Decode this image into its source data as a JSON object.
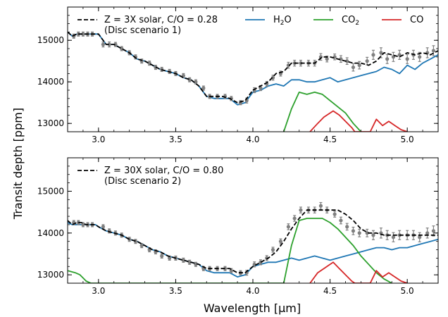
{
  "figure": {
    "ylabel": "Transit depth [ppm]",
    "xlabel": "Wavelength [μm]"
  },
  "colors": {
    "H2O": "#1f77b4",
    "CO2": "#2ca02c",
    "CO": "#d62728",
    "model": "#000000",
    "data": "#808080"
  },
  "chart_data": [
    {
      "type": "line",
      "legend_model": [
        "Z = 3X solar, C/O = 0.28",
        "(Disc scenario 1)"
      ],
      "legend_species": [
        {
          "key": "H2O",
          "label": "H",
          "sub": "2",
          "tail": "O"
        },
        {
          "key": "CO2",
          "label": "CO",
          "sub": "2",
          "tail": ""
        },
        {
          "key": "CO",
          "label": "CO",
          "sub": "",
          "tail": ""
        }
      ],
      "legend_placement": "top",
      "xlim": [
        2.8,
        5.2
      ],
      "ylim": [
        12800,
        15800
      ],
      "xticks": [
        3.0,
        3.5,
        4.0,
        4.5,
        5.0
      ],
      "xtick_labels": [
        "3.0",
        "3.5",
        "4.0",
        "4.5",
        "5.0"
      ],
      "yticks": [
        13000,
        14000,
        15000
      ],
      "ytick_labels": [
        "13000",
        "14000",
        "15000"
      ],
      "grid": false,
      "series": {
        "model": {
          "x": [
            2.8,
            2.83,
            2.86,
            2.89,
            2.92,
            2.95,
            2.98,
            3.0,
            3.05,
            3.1,
            3.15,
            3.2,
            3.25,
            3.3,
            3.35,
            3.4,
            3.45,
            3.5,
            3.55,
            3.6,
            3.65,
            3.7,
            3.75,
            3.8,
            3.85,
            3.9,
            3.95,
            4.0,
            4.05,
            4.1,
            4.15,
            4.2,
            4.25,
            4.3,
            4.35,
            4.4,
            4.45,
            4.5,
            4.55,
            4.6,
            4.65,
            4.7,
            4.75,
            4.8,
            4.85,
            4.9,
            4.95,
            5.0,
            5.05,
            5.1,
            5.15,
            5.2
          ],
          "y": [
            15200,
            15100,
            15150,
            15150,
            15150,
            15150,
            15150,
            15150,
            14900,
            14900,
            14800,
            14700,
            14550,
            14500,
            14400,
            14300,
            14250,
            14200,
            14100,
            14050,
            13900,
            13650,
            13650,
            13650,
            13600,
            13500,
            13550,
            13800,
            13900,
            14000,
            14200,
            14250,
            14450,
            14450,
            14450,
            14450,
            14600,
            14600,
            14550,
            14500,
            14450,
            14450,
            14400,
            14500,
            14700,
            14650,
            14600,
            14700,
            14650,
            14700,
            14650,
            14750
          ]
        },
        "H2O": {
          "x": [
            2.8,
            2.83,
            2.86,
            2.89,
            2.92,
            2.95,
            2.98,
            3.0,
            3.05,
            3.1,
            3.15,
            3.2,
            3.25,
            3.3,
            3.35,
            3.4,
            3.45,
            3.5,
            3.55,
            3.6,
            3.65,
            3.7,
            3.75,
            3.8,
            3.85,
            3.9,
            3.95,
            4.0,
            4.05,
            4.1,
            4.15,
            4.2,
            4.25,
            4.3,
            4.35,
            4.4,
            4.45,
            4.5,
            4.55,
            4.6,
            4.65,
            4.7,
            4.75,
            4.8,
            4.85,
            4.9,
            4.95,
            5.0,
            5.05,
            5.1,
            5.15,
            5.2
          ],
          "y": [
            15200,
            15100,
            15150,
            15150,
            15150,
            15150,
            15150,
            15150,
            14900,
            14900,
            14800,
            14700,
            14550,
            14500,
            14400,
            14300,
            14250,
            14200,
            14100,
            14050,
            13900,
            13650,
            13600,
            13600,
            13600,
            13450,
            13500,
            13750,
            13800,
            13900,
            13950,
            13900,
            14050,
            14050,
            14000,
            14000,
            14050,
            14100,
            14000,
            14050,
            14100,
            14150,
            14200,
            14250,
            14350,
            14300,
            14200,
            14400,
            14300,
            14450,
            14550,
            14650
          ]
        },
        "CO2": {
          "x": [
            4.2,
            4.25,
            4.3,
            4.35,
            4.4,
            4.45,
            4.5,
            4.55,
            4.6,
            4.65,
            4.7
          ],
          "y": [
            12800,
            13350,
            13750,
            13700,
            13750,
            13700,
            13550,
            13400,
            13250,
            13000,
            12800
          ]
        },
        "CO": {
          "x": [
            4.37,
            4.42,
            4.46,
            4.52,
            4.56,
            4.6,
            4.64,
            4.66,
            4.68,
            4.76,
            4.8,
            4.84,
            4.88,
            4.92,
            4.96,
            5.0
          ],
          "y": [
            12800,
            13000,
            13150,
            13300,
            13200,
            13050,
            12900,
            12800,
            12800,
            12800,
            13100,
            12950,
            13050,
            12950,
            12850,
            12800
          ]
        },
        "data": {
          "x": [
            2.84,
            2.87,
            2.9,
            2.93,
            2.96,
            3.03,
            3.07,
            3.11,
            3.15,
            3.2,
            3.24,
            3.28,
            3.33,
            3.37,
            3.41,
            3.46,
            3.5,
            3.55,
            3.59,
            3.63,
            3.68,
            3.72,
            3.77,
            3.82,
            3.86,
            3.92,
            3.96,
            4.01,
            4.05,
            4.09,
            4.13,
            4.18,
            4.23,
            4.27,
            4.31,
            4.36,
            4.4,
            4.44,
            4.48,
            4.53,
            4.57,
            4.61,
            4.65,
            4.69,
            4.74,
            4.78,
            4.83,
            4.87,
            4.91,
            4.95,
            5.0,
            5.04,
            5.08,
            5.13,
            5.17
          ],
          "y": [
            15100,
            15150,
            15150,
            15150,
            15150,
            14900,
            14900,
            14900,
            14800,
            14700,
            14600,
            14500,
            14450,
            14350,
            14300,
            14250,
            14200,
            14150,
            14050,
            14000,
            13850,
            13650,
            13650,
            13650,
            13600,
            13500,
            13550,
            13800,
            13850,
            13950,
            14100,
            14200,
            14400,
            14450,
            14450,
            14450,
            14450,
            14600,
            14550,
            14600,
            14550,
            14500,
            14350,
            14400,
            14500,
            14650,
            14700,
            14550,
            14600,
            14650,
            14550,
            14650,
            14600,
            14700,
            14750
          ],
          "err": [
            50,
            50,
            50,
            50,
            50,
            60,
            60,
            50,
            50,
            50,
            50,
            50,
            50,
            50,
            50,
            50,
            50,
            50,
            50,
            50,
            50,
            50,
            50,
            50,
            50,
            50,
            60,
            60,
            60,
            60,
            60,
            60,
            70,
            70,
            70,
            70,
            70,
            80,
            70,
            70,
            80,
            80,
            90,
            90,
            90,
            110,
            120,
            110,
            110,
            110,
            110,
            110,
            110,
            120,
            120
          ]
        }
      }
    },
    {
      "type": "line",
      "legend_model": [
        "Z = 30X solar, C/O = 0.80",
        "(Disc scenario 2)"
      ],
      "legend_placement": "top-left",
      "xlim": [
        2.8,
        5.2
      ],
      "ylim": [
        12800,
        15800
      ],
      "xticks": [
        3.0,
        3.5,
        4.0,
        4.5,
        5.0
      ],
      "xtick_labels": [
        "3.0",
        "3.5",
        "4.0",
        "4.5",
        "5.0"
      ],
      "yticks": [
        13000,
        14000,
        15000
      ],
      "ytick_labels": [
        "13000",
        "14000",
        "15000"
      ],
      "grid": false,
      "series": {
        "model": {
          "x": [
            2.8,
            2.83,
            2.86,
            2.89,
            2.92,
            2.95,
            2.98,
            3.0,
            3.05,
            3.1,
            3.15,
            3.2,
            3.25,
            3.3,
            3.35,
            3.4,
            3.45,
            3.5,
            3.55,
            3.6,
            3.65,
            3.7,
            3.75,
            3.8,
            3.85,
            3.9,
            3.95,
            4.0,
            4.05,
            4.1,
            4.15,
            4.2,
            4.25,
            4.3,
            4.35,
            4.4,
            4.45,
            4.5,
            4.55,
            4.6,
            4.65,
            4.7,
            4.75,
            4.8,
            4.85,
            4.9,
            4.95,
            5.0,
            5.05,
            5.1,
            5.15,
            5.2
          ],
          "y": [
            14300,
            14200,
            14250,
            14250,
            14200,
            14200,
            14200,
            14150,
            14050,
            14000,
            13950,
            13850,
            13800,
            13700,
            13600,
            13550,
            13450,
            13400,
            13350,
            13300,
            13250,
            13150,
            13150,
            13150,
            13150,
            13050,
            13050,
            13200,
            13300,
            13400,
            13550,
            13800,
            14100,
            14350,
            14550,
            14550,
            14550,
            14550,
            14550,
            14450,
            14300,
            14100,
            14000,
            14000,
            13950,
            13950,
            13950,
            13950,
            13950,
            13950,
            13950,
            13950
          ]
        },
        "H2O": {
          "x": [
            2.8,
            2.83,
            2.86,
            2.89,
            2.92,
            2.95,
            2.98,
            3.0,
            3.05,
            3.1,
            3.15,
            3.2,
            3.25,
            3.3,
            3.35,
            3.4,
            3.45,
            3.5,
            3.55,
            3.6,
            3.65,
            3.7,
            3.75,
            3.8,
            3.85,
            3.9,
            3.95,
            4.0,
            4.05,
            4.1,
            4.15,
            4.2,
            4.25,
            4.3,
            4.35,
            4.4,
            4.45,
            4.5,
            4.55,
            4.6,
            4.65,
            4.7,
            4.75,
            4.8,
            4.85,
            4.9,
            4.95,
            5.0,
            5.05,
            5.1,
            5.15,
            5.2
          ],
          "y": [
            14250,
            14200,
            14200,
            14200,
            14200,
            14200,
            14200,
            14150,
            14050,
            14000,
            13950,
            13850,
            13800,
            13700,
            13600,
            13550,
            13450,
            13400,
            13350,
            13300,
            13250,
            13100,
            13050,
            13050,
            13050,
            12950,
            13000,
            13200,
            13250,
            13300,
            13300,
            13350,
            13400,
            13350,
            13400,
            13450,
            13400,
            13350,
            13400,
            13450,
            13500,
            13550,
            13600,
            13650,
            13650,
            13600,
            13650,
            13650,
            13700,
            13750,
            13800,
            13850
          ]
        },
        "CO2": {
          "x": [
            2.8,
            2.85,
            2.88,
            2.92,
            2.95,
            4.2,
            4.25,
            4.3,
            4.35,
            4.4,
            4.45,
            4.5,
            4.55,
            4.6,
            4.65,
            4.7,
            4.75,
            4.8,
            4.85,
            4.9
          ],
          "y": [
            13100,
            13050,
            13000,
            12850,
            12800,
            12800,
            13700,
            14300,
            14350,
            14350,
            14350,
            14250,
            14100,
            13900,
            13700,
            13450,
            13250,
            13050,
            12900,
            12800
          ]
        },
        "CO": {
          "x": [
            4.37,
            4.42,
            4.46,
            4.52,
            4.56,
            4.6,
            4.64,
            4.66,
            4.68,
            4.76,
            4.8,
            4.84,
            4.88,
            4.92,
            4.96,
            5.0
          ],
          "y": [
            12800,
            13050,
            13150,
            13300,
            13150,
            13000,
            12850,
            12800,
            12800,
            12800,
            13100,
            12950,
            13050,
            12950,
            12850,
            12800
          ]
        },
        "data": {
          "x": [
            2.84,
            2.87,
            2.9,
            2.93,
            2.96,
            3.03,
            3.07,
            3.11,
            3.15,
            3.2,
            3.24,
            3.28,
            3.33,
            3.37,
            3.41,
            3.46,
            3.5,
            3.55,
            3.59,
            3.63,
            3.68,
            3.72,
            3.77,
            3.82,
            3.86,
            3.92,
            3.96,
            4.01,
            4.05,
            4.09,
            4.13,
            4.18,
            4.23,
            4.27,
            4.31,
            4.36,
            4.4,
            4.44,
            4.48,
            4.53,
            4.57,
            4.61,
            4.65,
            4.69,
            4.74,
            4.78,
            4.83,
            4.87,
            4.91,
            4.95,
            5.0,
            5.04,
            5.08,
            5.13,
            5.17
          ],
          "y": [
            14250,
            14250,
            14200,
            14200,
            14200,
            14150,
            14050,
            14000,
            13950,
            13850,
            13800,
            13700,
            13600,
            13550,
            13450,
            13400,
            13400,
            13350,
            13300,
            13250,
            13150,
            13150,
            13150,
            13150,
            13100,
            13050,
            13050,
            13250,
            13300,
            13400,
            13600,
            13800,
            14150,
            14350,
            14550,
            14550,
            14550,
            14650,
            14550,
            14450,
            14300,
            14150,
            14050,
            14000,
            14000,
            13950,
            14000,
            13950,
            13900,
            13950,
            13950,
            13950,
            13900,
            14000,
            14050
          ],
          "err": [
            50,
            50,
            50,
            50,
            50,
            50,
            50,
            50,
            50,
            50,
            50,
            50,
            50,
            50,
            50,
            50,
            50,
            50,
            50,
            50,
            50,
            50,
            50,
            50,
            50,
            50,
            60,
            60,
            60,
            60,
            60,
            60,
            70,
            70,
            70,
            70,
            70,
            80,
            70,
            70,
            80,
            80,
            90,
            90,
            90,
            110,
            120,
            110,
            110,
            110,
            110,
            110,
            110,
            120,
            120
          ]
        }
      }
    }
  ]
}
